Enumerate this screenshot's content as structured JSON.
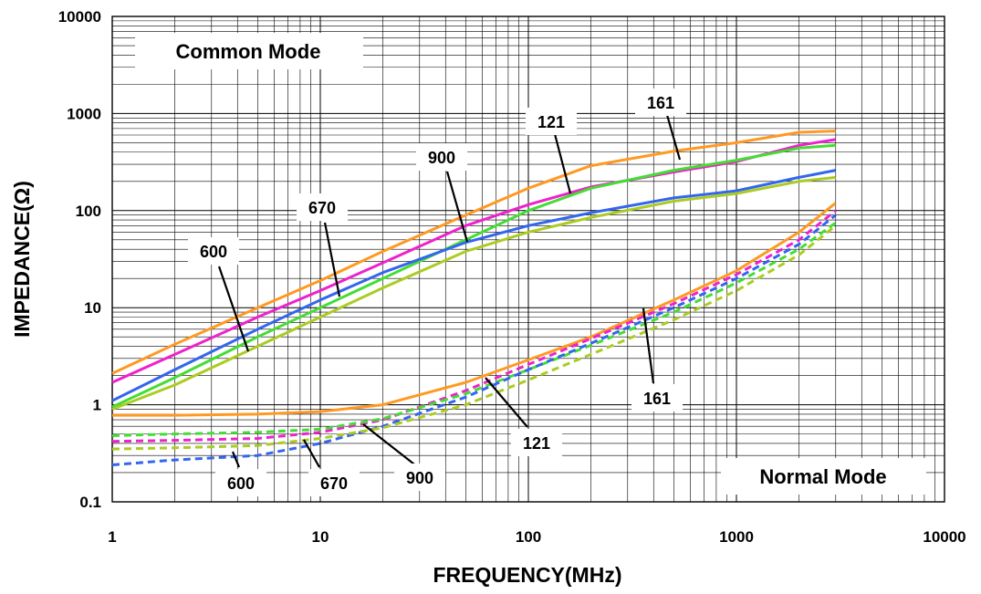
{
  "chart_data": {
    "type": "line",
    "xlabel": "FREQUENCY(MHz)",
    "ylabel": "IMPEDANCE(Ω)",
    "xscale": "log",
    "yscale": "log",
    "xlim": [
      1,
      10000
    ],
    "ylim": [
      0.1,
      10000
    ],
    "grid": true,
    "x_ticks": [
      "1",
      "10",
      "100",
      "1000",
      "10000"
    ],
    "y_ticks": [
      "0.1",
      "1",
      "10",
      "100",
      "1000",
      "10000"
    ],
    "annotations": {
      "common_mode": "Common Mode",
      "normal_mode": "Normal Mode"
    },
    "series": [
      {
        "name": "161",
        "mode": "common",
        "style": "solid",
        "color": "#ff9922",
        "x": [
          1,
          2,
          5,
          10,
          20,
          50,
          100,
          200,
          500,
          1000,
          2000,
          3000
        ],
        "y": [
          2.1,
          4.2,
          10,
          19,
          38,
          90,
          170,
          290,
          410,
          500,
          640,
          660
        ]
      },
      {
        "name": "121",
        "mode": "common",
        "style": "solid",
        "color": "#ee22cc",
        "x": [
          1,
          2,
          5,
          10,
          20,
          50,
          100,
          200,
          500,
          1000,
          2000,
          3000
        ],
        "y": [
          1.7,
          3.3,
          8,
          15,
          29,
          70,
          115,
          175,
          250,
          320,
          470,
          540
        ]
      },
      {
        "name": "900",
        "mode": "common",
        "style": "solid",
        "color": "#44dd33",
        "x": [
          1,
          2,
          5,
          10,
          20,
          50,
          100,
          200,
          500,
          1000,
          2000,
          3000
        ],
        "y": [
          0.95,
          1.9,
          5,
          10,
          20,
          50,
          100,
          170,
          260,
          330,
          440,
          470
        ]
      },
      {
        "name": "600",
        "mode": "common",
        "style": "solid",
        "color": "#3366ee",
        "x": [
          1,
          2,
          5,
          10,
          20,
          50,
          100,
          200,
          500,
          1000,
          2000,
          3000
        ],
        "y": [
          1.1,
          2.3,
          6,
          12,
          23,
          47,
          70,
          95,
          135,
          160,
          220,
          260
        ]
      },
      {
        "name": "670",
        "mode": "common",
        "style": "solid",
        "color": "#aacc22",
        "x": [
          1,
          2,
          5,
          10,
          20,
          50,
          100,
          200,
          500,
          1000,
          2000,
          3000
        ],
        "y": [
          0.9,
          1.6,
          4,
          8,
          16,
          38,
          60,
          85,
          125,
          150,
          200,
          220
        ]
      },
      {
        "name": "161",
        "mode": "normal",
        "style": "solid",
        "color": "#ff9922",
        "x": [
          1,
          2,
          5,
          10,
          20,
          50,
          100,
          200,
          500,
          1000,
          2000,
          3000
        ],
        "y": [
          0.78,
          0.78,
          0.8,
          0.85,
          1.0,
          1.7,
          2.9,
          5,
          12,
          24,
          60,
          120
        ]
      },
      {
        "name": "121",
        "mode": "normal",
        "style": "dashed",
        "color": "#ee22cc",
        "x": [
          1,
          2,
          5,
          10,
          20,
          50,
          100,
          200,
          500,
          1000,
          2000,
          3000
        ],
        "y": [
          0.42,
          0.43,
          0.45,
          0.52,
          0.7,
          1.4,
          2.6,
          4.8,
          11,
          22,
          50,
          100
        ]
      },
      {
        "name": "900",
        "mode": "normal",
        "style": "dashed",
        "color": "#44dd33",
        "x": [
          1,
          2,
          5,
          10,
          20,
          50,
          100,
          200,
          500,
          1000,
          2000,
          3000
        ],
        "y": [
          0.48,
          0.5,
          0.52,
          0.56,
          0.72,
          1.3,
          2.3,
          4.1,
          9,
          18,
          40,
          75
        ]
      },
      {
        "name": "600",
        "mode": "normal",
        "style": "dashed",
        "color": "#3366ee",
        "x": [
          1,
          2,
          5,
          10,
          20,
          50,
          100,
          200,
          500,
          1000,
          2000,
          3000
        ],
        "y": [
          0.24,
          0.27,
          0.3,
          0.4,
          0.6,
          1.2,
          2.3,
          4.3,
          10,
          20,
          45,
          90
        ]
      },
      {
        "name": "670",
        "mode": "normal",
        "style": "dashed",
        "color": "#aacc22",
        "x": [
          1,
          2,
          5,
          10,
          20,
          50,
          100,
          200,
          500,
          1000,
          2000,
          3000
        ],
        "y": [
          0.35,
          0.36,
          0.38,
          0.45,
          0.58,
          1.0,
          1.8,
          3.3,
          7.5,
          15,
          35,
          70
        ]
      }
    ],
    "point_labels": [
      {
        "text": "161",
        "mode": "common"
      },
      {
        "text": "121",
        "mode": "common"
      },
      {
        "text": "900",
        "mode": "common"
      },
      {
        "text": "670",
        "mode": "common"
      },
      {
        "text": "600",
        "mode": "common"
      },
      {
        "text": "161",
        "mode": "normal"
      },
      {
        "text": "121",
        "mode": "normal"
      },
      {
        "text": "900",
        "mode": "normal"
      },
      {
        "text": "670",
        "mode": "normal"
      },
      {
        "text": "600",
        "mode": "normal"
      }
    ]
  }
}
